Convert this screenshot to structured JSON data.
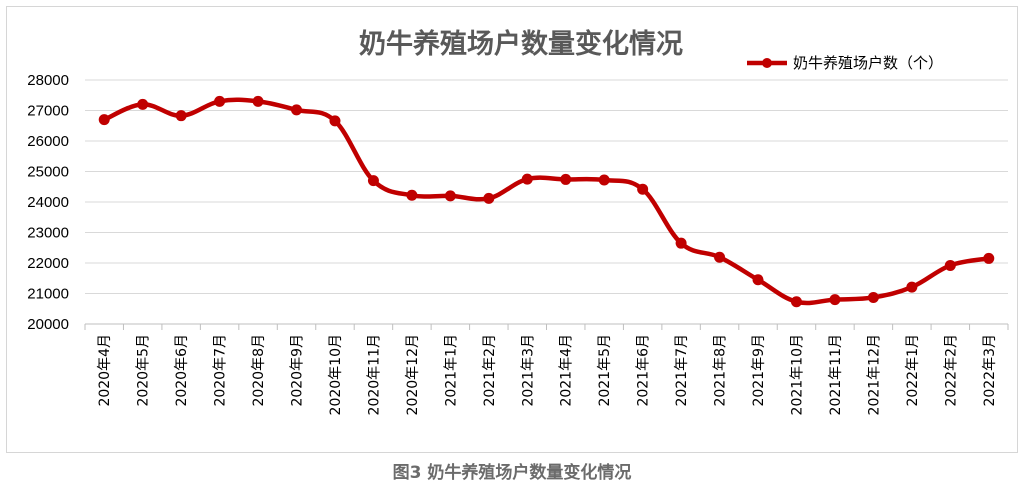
{
  "chart_data": {
    "type": "line",
    "title": "奶牛养殖场户数量变化情况",
    "categories": [
      "2020年4月",
      "2020年5月",
      "2020年6月",
      "2020年7月",
      "2020年8月",
      "2020年9月",
      "2020年10月",
      "2020年11月",
      "2020年12月",
      "2021年1月",
      "2021年2月",
      "2021年3月",
      "2021年4月",
      "2021年5月",
      "2021年6月",
      "2021年7月",
      "2021年8月",
      "2021年9月",
      "2021年10月",
      "2021年11月",
      "2021年12月",
      "2022年1月",
      "2022年2月",
      "2022年3月"
    ],
    "series": [
      {
        "name": "奶牛养殖场户数（个）",
        "color": "#c00000",
        "values": [
          26700,
          27200,
          26830,
          27300,
          27300,
          27020,
          26660,
          24700,
          24220,
          24200,
          24120,
          24750,
          24740,
          24720,
          24420,
          22650,
          22190,
          21450,
          20730,
          20800,
          20870,
          21210,
          21920,
          22150
        ]
      }
    ],
    "ylim": [
      20000,
      28000
    ],
    "yticks": [
      "20000",
      "21000",
      "22000",
      "23000",
      "24000",
      "25000",
      "26000",
      "27000",
      "28000"
    ],
    "grid": true,
    "legend": "top-right",
    "smooth": true
  },
  "caption": "图3   奶牛养殖场户数量变化情况"
}
